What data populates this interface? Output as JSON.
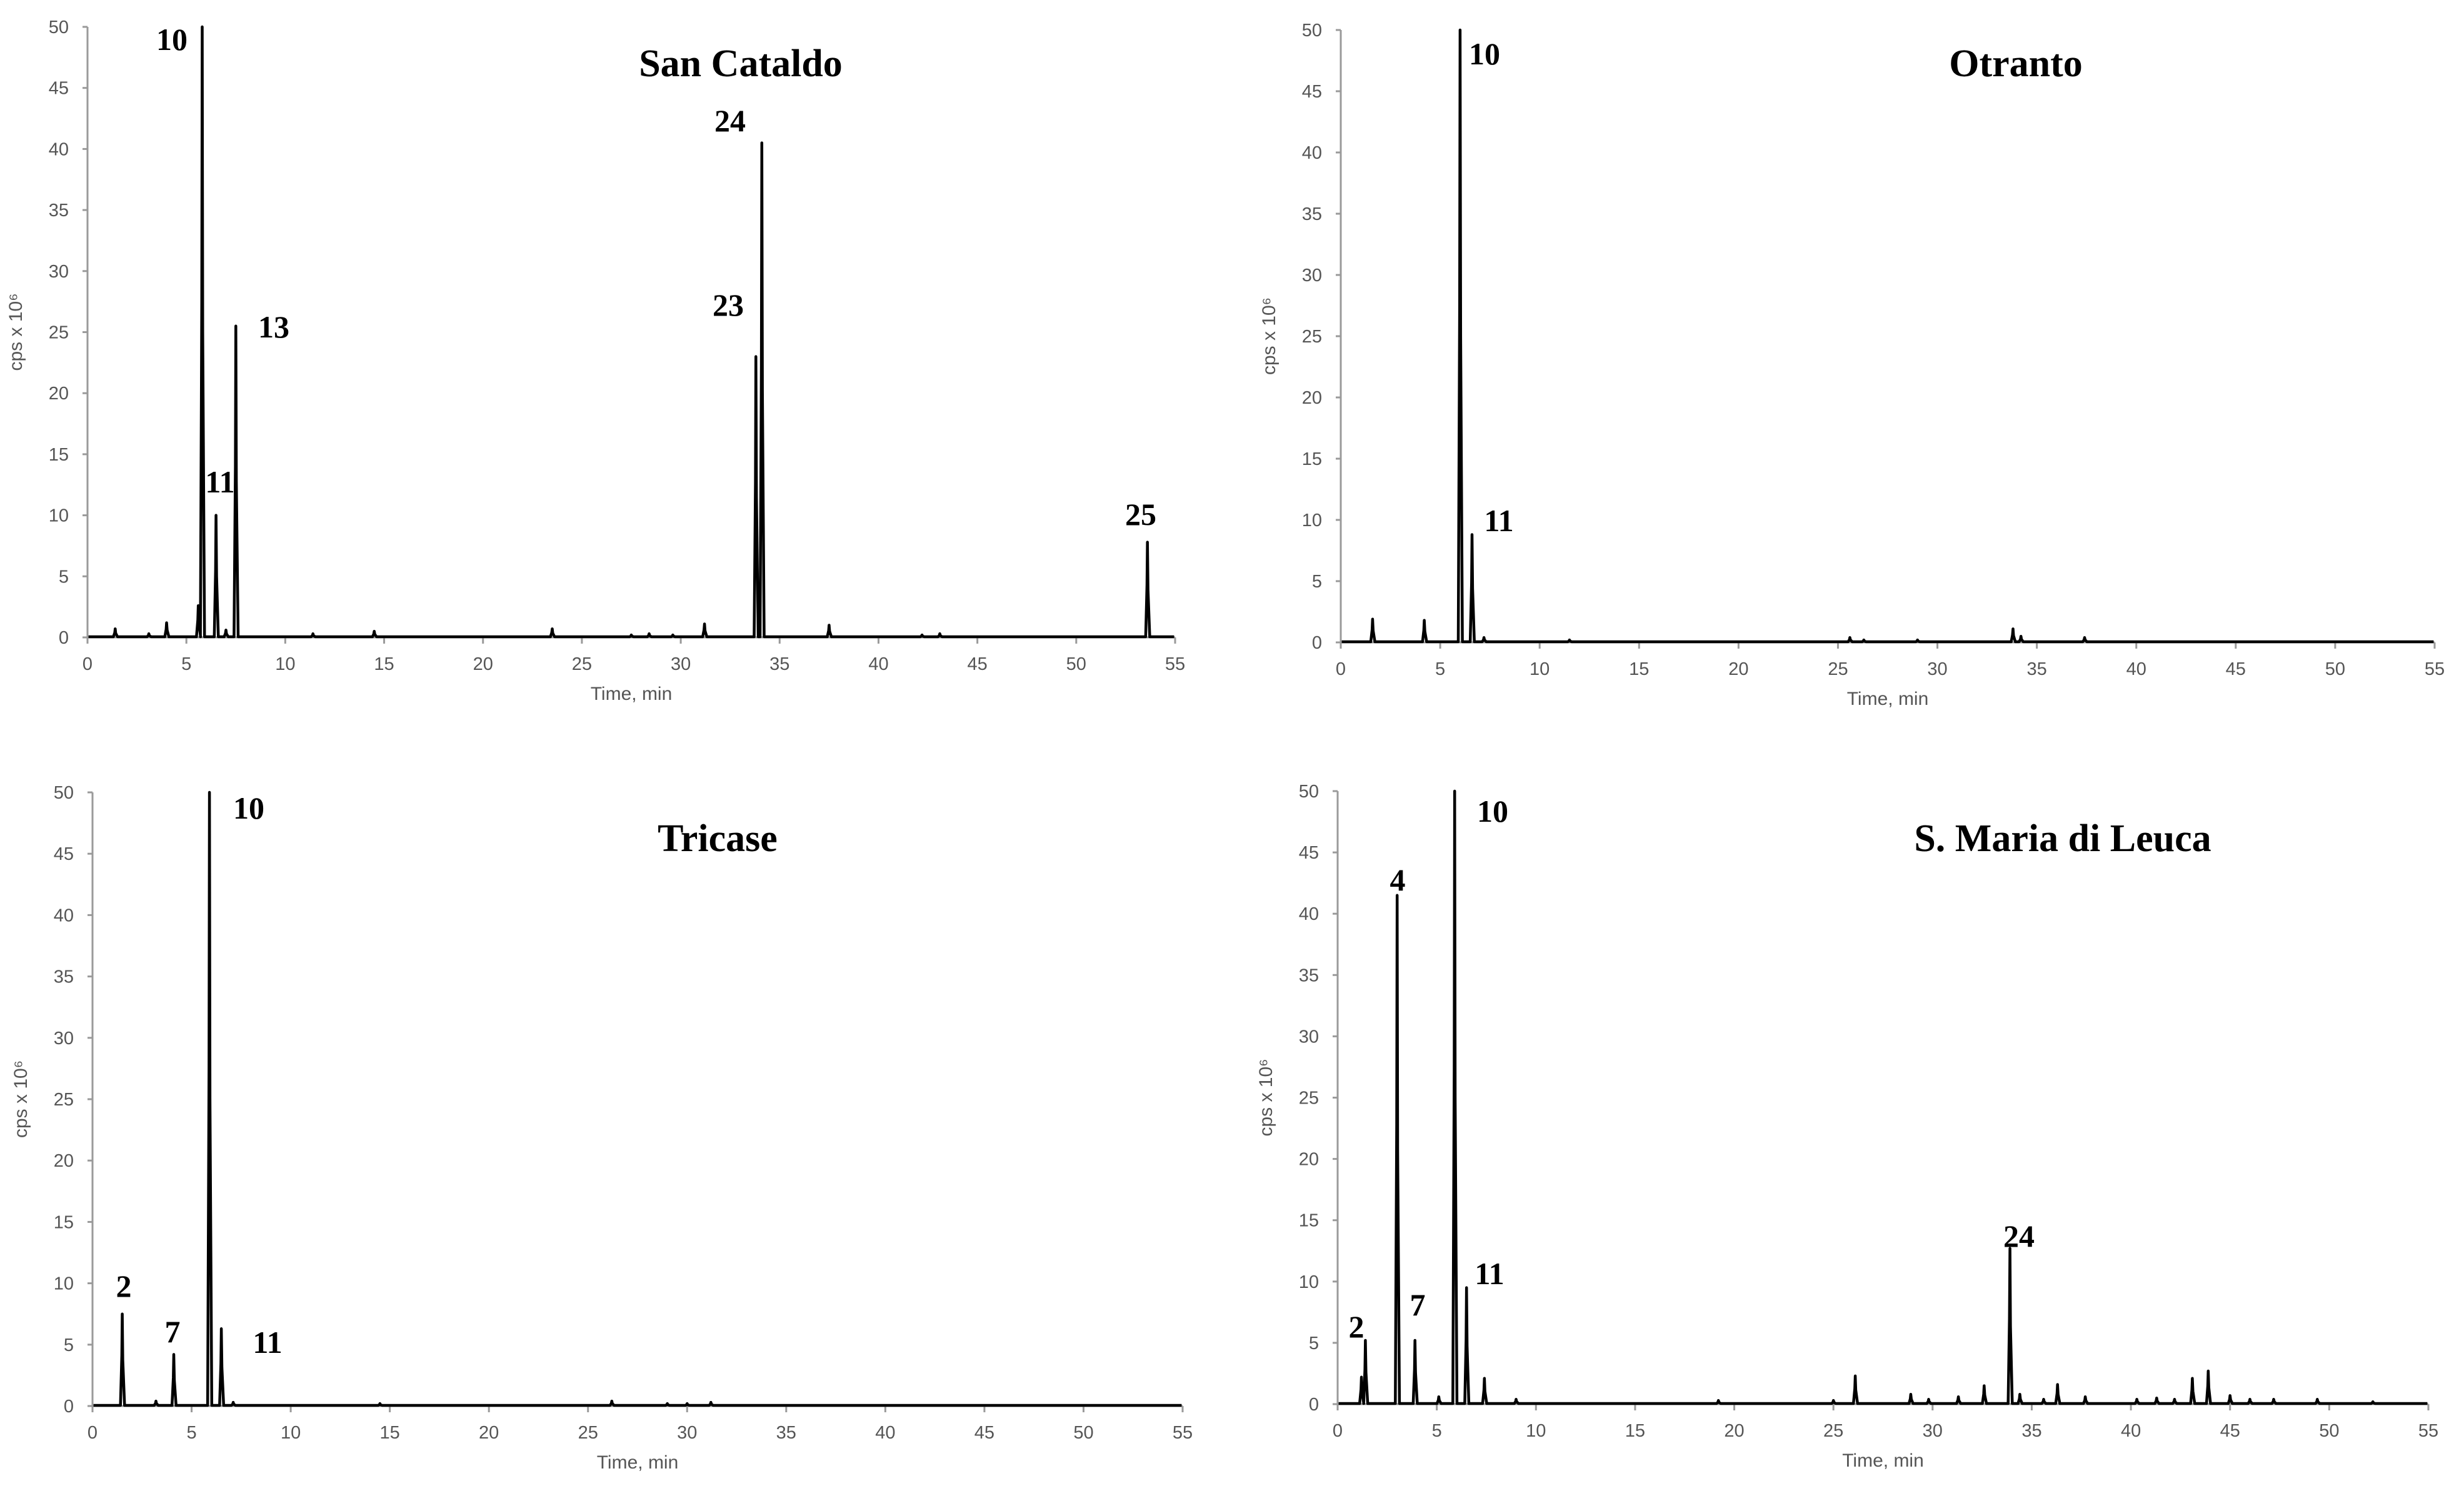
{
  "chart_data": [
    {
      "type": "line",
      "title": "San Cataldo",
      "xlabel": "Time, min",
      "ylabel": "cps x 10⁶",
      "xlim": [
        0,
        55
      ],
      "ylim": [
        0,
        50
      ],
      "xticks": [
        "0",
        "5",
        "10",
        "15",
        "20",
        "25",
        "30",
        "35",
        "40",
        "45",
        "50",
        "55"
      ],
      "yticks": [
        "0",
        "5",
        "10",
        "15",
        "20",
        "25",
        "30",
        "35",
        "40",
        "45",
        "50"
      ],
      "grid": false,
      "peaks": [
        {
          "x": 1.4,
          "y": 0.7
        },
        {
          "x": 3.1,
          "y": 0.3
        },
        {
          "x": 4.0,
          "y": 1.2
        },
        {
          "x": 5.6,
          "y": 2.6
        },
        {
          "x": 5.8,
          "y": 50,
          "label": "10"
        },
        {
          "x": 6.5,
          "y": 10.0,
          "label": "11"
        },
        {
          "x": 7.0,
          "y": 0.6
        },
        {
          "x": 7.5,
          "y": 25.5,
          "label": "13"
        },
        {
          "x": 11.4,
          "y": 0.3
        },
        {
          "x": 14.5,
          "y": 0.5
        },
        {
          "x": 23.5,
          "y": 0.7
        },
        {
          "x": 27.5,
          "y": 0.2
        },
        {
          "x": 28.4,
          "y": 0.3
        },
        {
          "x": 29.6,
          "y": 0.2
        },
        {
          "x": 31.2,
          "y": 1.1
        },
        {
          "x": 33.8,
          "y": 23.0,
          "label": "23"
        },
        {
          "x": 34.1,
          "y": 40.5,
          "label": "24"
        },
        {
          "x": 37.5,
          "y": 1.0
        },
        {
          "x": 42.2,
          "y": 0.2
        },
        {
          "x": 43.1,
          "y": 0.3
        },
        {
          "x": 53.6,
          "y": 7.8,
          "label": "25"
        }
      ]
    },
    {
      "type": "line",
      "title": "Otranto",
      "xlabel": "Time, min",
      "ylabel": "cps x 10⁶",
      "xlim": [
        0,
        55
      ],
      "ylim": [
        0,
        50
      ],
      "xticks": [
        "0",
        "5",
        "10",
        "15",
        "20",
        "25",
        "30",
        "35",
        "40",
        "45",
        "50",
        "55"
      ],
      "yticks": [
        "0",
        "5",
        "10",
        "15",
        "20",
        "25",
        "30",
        "35",
        "40",
        "45",
        "50"
      ],
      "grid": false,
      "peaks": [
        {
          "x": 1.6,
          "y": 1.9
        },
        {
          "x": 4.2,
          "y": 1.8
        },
        {
          "x": 6.0,
          "y": 50,
          "label": "10"
        },
        {
          "x": 6.6,
          "y": 8.8,
          "label": "11"
        },
        {
          "x": 7.2,
          "y": 0.4
        },
        {
          "x": 11.5,
          "y": 0.2
        },
        {
          "x": 25.6,
          "y": 0.4
        },
        {
          "x": 26.3,
          "y": 0.2
        },
        {
          "x": 29.0,
          "y": 0.2
        },
        {
          "x": 33.8,
          "y": 1.1
        },
        {
          "x": 34.2,
          "y": 0.5
        },
        {
          "x": 37.4,
          "y": 0.4
        }
      ]
    },
    {
      "type": "line",
      "title": "Tricase",
      "xlabel": "Time, min",
      "ylabel": "cps x 10⁶",
      "xlim": [
        0,
        55
      ],
      "ylim": [
        0,
        50
      ],
      "xticks": [
        "0",
        "5",
        "10",
        "15",
        "20",
        "25",
        "30",
        "35",
        "40",
        "45",
        "50",
        "55"
      ],
      "yticks": [
        "0",
        "5",
        "10",
        "15",
        "20",
        "25",
        "30",
        "35",
        "40",
        "45",
        "50"
      ],
      "grid": false,
      "peaks": [
        {
          "x": 1.5,
          "y": 7.5,
          "label": "2"
        },
        {
          "x": 3.2,
          "y": 0.4
        },
        {
          "x": 4.1,
          "y": 4.2,
          "label": "7"
        },
        {
          "x": 5.9,
          "y": 50,
          "label": "10"
        },
        {
          "x": 6.5,
          "y": 6.3,
          "label": "11"
        },
        {
          "x": 7.1,
          "y": 0.3
        },
        {
          "x": 14.5,
          "y": 0.2
        },
        {
          "x": 26.2,
          "y": 0.4
        },
        {
          "x": 29.0,
          "y": 0.2
        },
        {
          "x": 30.0,
          "y": 0.2
        },
        {
          "x": 31.2,
          "y": 0.3
        }
      ]
    },
    {
      "type": "line",
      "title": "S. Maria di Leuca",
      "xlabel": "Time, min",
      "ylabel": "cps x 10⁶",
      "xlim": [
        0,
        55
      ],
      "ylim": [
        0,
        50
      ],
      "xticks": [
        "0",
        "5",
        "10",
        "15",
        "20",
        "25",
        "30",
        "35",
        "40",
        "45",
        "50",
        "55"
      ],
      "yticks": [
        "0",
        "5",
        "10",
        "15",
        "20",
        "25",
        "30",
        "35",
        "40",
        "45",
        "50"
      ],
      "grid": false,
      "peaks": [
        {
          "x": 1.2,
          "y": 2.2
        },
        {
          "x": 1.4,
          "y": 5.2,
          "label": "2"
        },
        {
          "x": 3.0,
          "y": 41.5,
          "label": "4"
        },
        {
          "x": 3.9,
          "y": 5.2,
          "label": "7"
        },
        {
          "x": 5.1,
          "y": 0.6
        },
        {
          "x": 5.9,
          "y": 50,
          "label": "10"
        },
        {
          "x": 6.5,
          "y": 9.5,
          "label": "11"
        },
        {
          "x": 7.4,
          "y": 2.1
        },
        {
          "x": 9.0,
          "y": 0.4
        },
        {
          "x": 19.2,
          "y": 0.3
        },
        {
          "x": 25.0,
          "y": 0.3
        },
        {
          "x": 26.1,
          "y": 2.3
        },
        {
          "x": 28.9,
          "y": 0.8
        },
        {
          "x": 29.8,
          "y": 0.4
        },
        {
          "x": 31.3,
          "y": 0.6
        },
        {
          "x": 32.6,
          "y": 1.5
        },
        {
          "x": 33.9,
          "y": 12.7,
          "label": "24"
        },
        {
          "x": 34.4,
          "y": 0.8
        },
        {
          "x": 35.6,
          "y": 0.4
        },
        {
          "x": 36.3,
          "y": 1.6
        },
        {
          "x": 37.7,
          "y": 0.6
        },
        {
          "x": 40.3,
          "y": 0.4
        },
        {
          "x": 41.3,
          "y": 0.5
        },
        {
          "x": 42.2,
          "y": 0.4
        },
        {
          "x": 43.1,
          "y": 2.1
        },
        {
          "x": 43.9,
          "y": 2.7
        },
        {
          "x": 45.0,
          "y": 0.7
        },
        {
          "x": 46.0,
          "y": 0.4
        },
        {
          "x": 47.2,
          "y": 0.4
        },
        {
          "x": 49.4,
          "y": 0.4
        },
        {
          "x": 52.2,
          "y": 0.2
        }
      ]
    }
  ]
}
